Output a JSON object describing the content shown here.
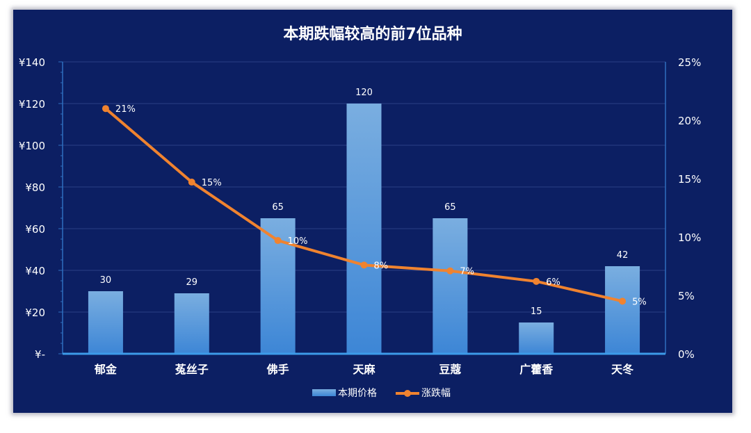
{
  "chart_data": {
    "type": "bar+line",
    "title": "本期跌幅较高的前7位品种",
    "categories": [
      "郁金",
      "菟丝子",
      "佛手",
      "天麻",
      "豆蔻",
      "广藿香",
      "天冬"
    ],
    "series": [
      {
        "name": "本期价格",
        "type": "bar",
        "axis": "left",
        "values": [
          30,
          29,
          65,
          120,
          65,
          15,
          42
        ],
        "data_labels": [
          "30",
          "29",
          "65",
          "120",
          "65",
          "15",
          "42"
        ]
      },
      {
        "name": "涨跌幅",
        "type": "line",
        "axis": "right",
        "values": [
          21,
          14.7,
          9.7,
          7.6,
          7.1,
          6.2,
          4.5
        ],
        "data_labels": [
          "21%",
          "15%",
          "10%",
          "8%",
          "7%",
          "6%",
          "5%"
        ]
      }
    ],
    "y_left": {
      "ylim": [
        0,
        140
      ],
      "ticks": [
        0,
        20,
        40,
        60,
        80,
        100,
        120,
        140
      ],
      "tick_labels": [
        "¥-",
        "¥20",
        "¥40",
        "¥60",
        "¥80",
        "¥100",
        "¥120",
        "¥140"
      ]
    },
    "y_right": {
      "ylim": [
        0,
        25
      ],
      "ticks": [
        0,
        5,
        10,
        15,
        20,
        25
      ],
      "tick_labels": [
        "0%",
        "5%",
        "10%",
        "15%",
        "20%",
        "25%"
      ]
    },
    "grid": true,
    "legend": "bottom",
    "colors": {
      "background": "#0c1f63",
      "bar_top": "#7aaee0",
      "bar_bottom": "#3d86d6",
      "line": "#f0832f",
      "text": "#ffffff",
      "grid": "#2a3f86",
      "axis": "#2e6fbf"
    }
  }
}
